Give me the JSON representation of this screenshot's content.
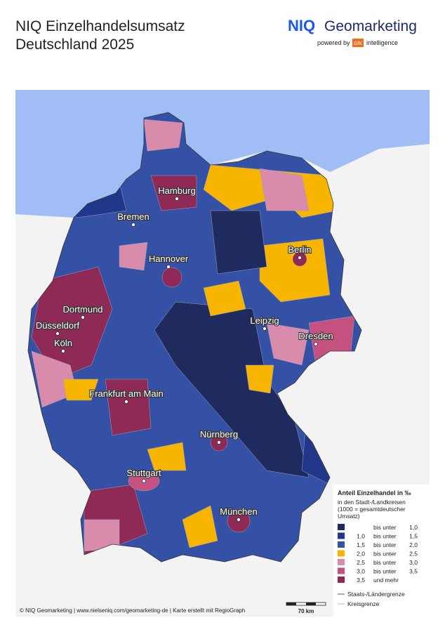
{
  "header": {
    "title_line1": "NIQ Einzelhandelsumsatz",
    "title_line2": "Deutschland 2025",
    "logo_niq": "NIQ",
    "logo_geo": "Geomarketing",
    "powered_by": "powered by",
    "gfk": "GfK",
    "intelligence": "intelligence"
  },
  "cities": [
    "Hamburg",
    "Bremen",
    "Berlin",
    "Hannover",
    "Dortmund",
    "Düsseldorf",
    "Köln",
    "Leipzig",
    "Dresden",
    "Frankfurt am Main",
    "Nürnberg",
    "Stuttgart",
    "München"
  ],
  "legend": {
    "title": "Anteil Einzelhandel in ‰",
    "subtitle": [
      "in den Stadt-/Landkreisen",
      "(1000 = gesamtdeutscher",
      "Umsatz)"
    ],
    "classes": [
      {
        "connector": "bis unter",
        "to": "1,0",
        "color": "#1f2b5e"
      },
      {
        "from": "1,0",
        "connector": "bis unter",
        "to": "1,5",
        "color": "#22378a"
      },
      {
        "from": "1,5",
        "connector": "bis unter",
        "to": "2,0",
        "color": "#3551a6"
      },
      {
        "from": "2,0",
        "connector": "bis unter",
        "to": "2,5",
        "color": "#f7b500"
      },
      {
        "from": "2,5",
        "connector": "bis unter",
        "to": "3,0",
        "color": "#d98bab"
      },
      {
        "from": "3,0",
        "connector": "bis unter",
        "to": "3,5",
        "color": "#c4517f"
      },
      {
        "from": "3,5",
        "connector": "und mehr",
        "color": "#8e2a55"
      }
    ],
    "borders": [
      "Staats-/Ländergrenze",
      "Kreisgrenze"
    ]
  },
  "scale": "70 km",
  "footer": "© NIQ Geomarketing | www.nielseniq.com/geomarketing-de | Karte erstellt mit RegioGraph"
}
